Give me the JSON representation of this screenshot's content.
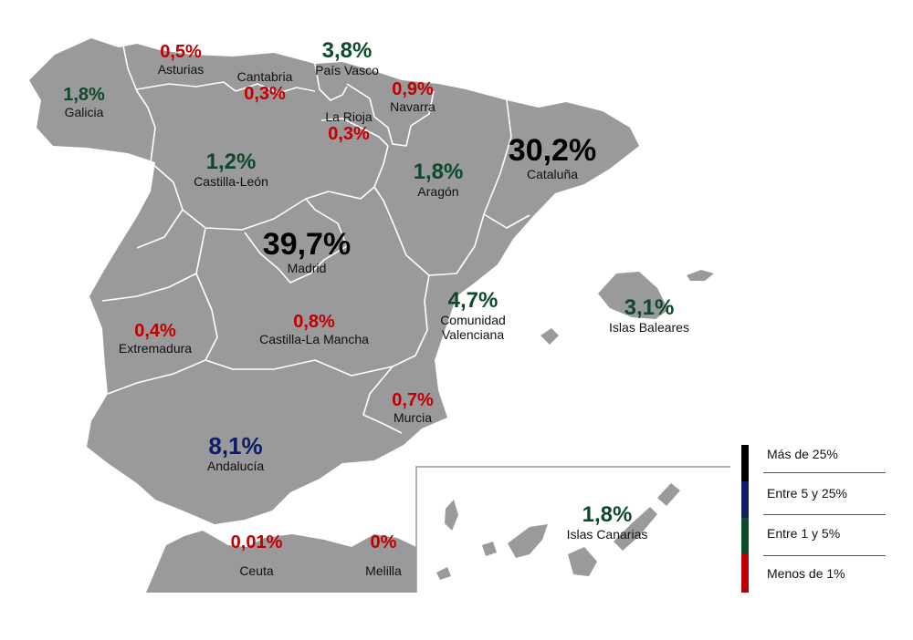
{
  "colors": {
    "region_fill": "#9a9a9c",
    "more_than_25": "#000000",
    "between_5_25": "#0d1b6b",
    "between_1_5": "#0c4a2a",
    "less_than_1": "#c00000"
  },
  "regions": {
    "galicia": {
      "pct": "1,8%",
      "name": "Galicia"
    },
    "asturias": {
      "pct": "0,5%",
      "name": "Asturias"
    },
    "cantabria": {
      "pct": "0,3%",
      "name": "Cantabria"
    },
    "pais_vasco": {
      "pct": "3,8%",
      "name": "País Vasco"
    },
    "navarra": {
      "pct": "0,9%",
      "name": "Navarra"
    },
    "la_rioja": {
      "pct": "0,3%",
      "name": "La Rioja"
    },
    "castilla_leon": {
      "pct": "1,2%",
      "name": "Castilla-León"
    },
    "aragon": {
      "pct": "1,8%",
      "name": "Aragón"
    },
    "cataluna": {
      "pct": "30,2%",
      "name": "Cataluña"
    },
    "madrid": {
      "pct": "39,7%",
      "name": "Madrid"
    },
    "extremadura": {
      "pct": "0,4%",
      "name": "Extremadura"
    },
    "castilla_la_mancha": {
      "pct": "0,8%",
      "name": "Castilla-La Mancha"
    },
    "comunidad_valenciana": {
      "pct": "4,7%",
      "name1": "Comunidad",
      "name2": "Valenciana"
    },
    "islas_baleares": {
      "pct": "3,1%",
      "name": "Islas Baleares"
    },
    "murcia": {
      "pct": "0,7%",
      "name": "Murcia"
    },
    "andalucia": {
      "pct": "8,1%",
      "name": "Andalucía"
    },
    "islas_canarias": {
      "pct": "1,8%",
      "name": "Islas Canarias"
    },
    "ceuta": {
      "pct": "0,01%",
      "name": "Ceuta"
    },
    "melilla": {
      "pct": "0%",
      "name": "Melilla"
    }
  },
  "legend": {
    "items": [
      "Más de 25%",
      "Entre 5 y 25%",
      "Entre 1 y 5%",
      "Menos de 1%"
    ]
  }
}
